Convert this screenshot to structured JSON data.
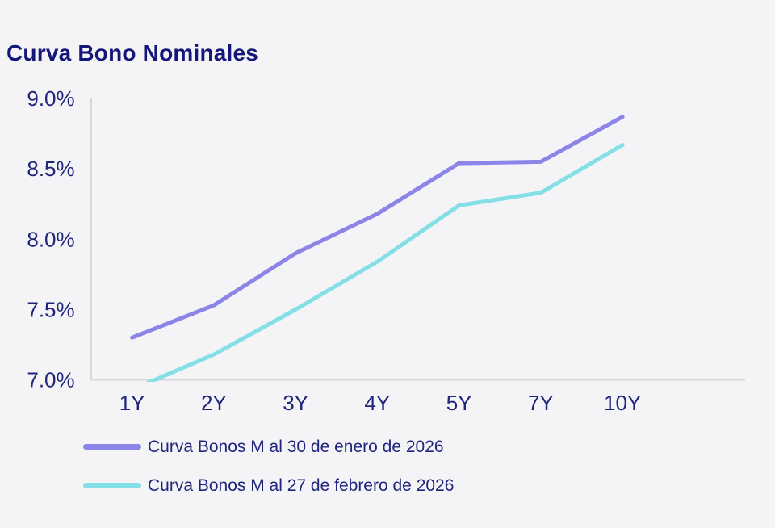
{
  "title": "Curva Bono Nominales",
  "chart_data": {
    "type": "line",
    "title": "Curva Bono Nominales",
    "categories": [
      "1Y",
      "2Y",
      "3Y",
      "4Y",
      "5Y",
      "7Y",
      "10Y"
    ],
    "series": [
      {
        "name": "Curva Bonos M al 30 de enero de 2026",
        "color": "#8c85e8",
        "values": [
          7.3,
          7.53,
          7.9,
          8.18,
          8.54,
          8.55,
          8.87
        ]
      },
      {
        "name": "Curva Bonos M al 27 de febrero de 2026",
        "color": "#84dfe6",
        "values": [
          6.93,
          7.18,
          7.5,
          7.84,
          8.24,
          8.33,
          8.67
        ]
      }
    ],
    "xlabel": "",
    "ylabel": "",
    "ylim": [
      7.0,
      9.0
    ],
    "ytick_step": 0.5,
    "ytick_labels": [
      "7.0%",
      "7.5%",
      "8.0%",
      "8.5%",
      "9.0%"
    ],
    "grid": false,
    "legend_position": "bottom-left",
    "colors": {
      "background": "#f4f4f6",
      "axis": "#d8d8da",
      "text": "#20257c",
      "title_text": "#14177a"
    }
  }
}
